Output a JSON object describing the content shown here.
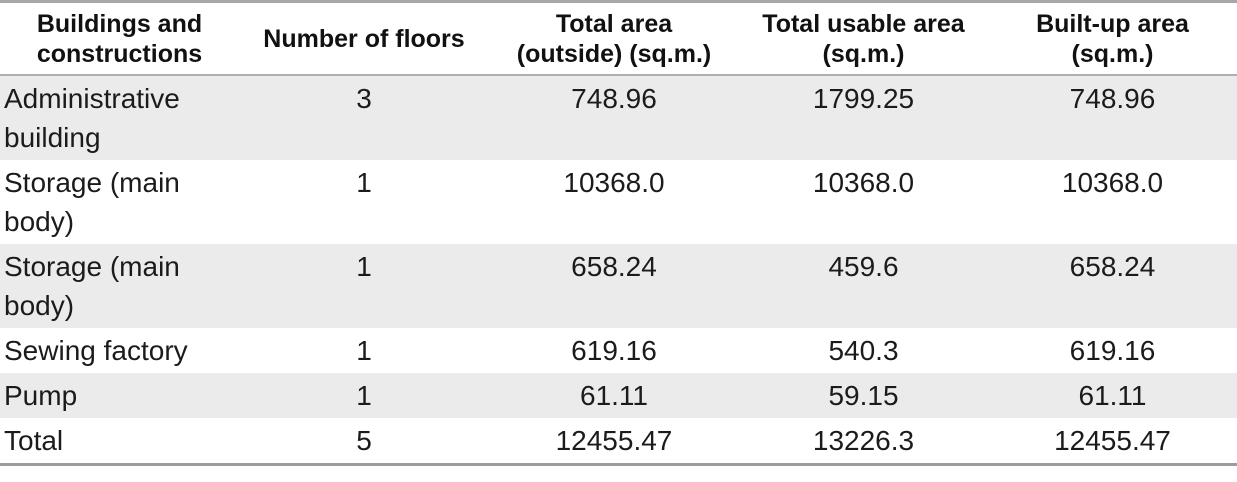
{
  "table": {
    "columns": [
      {
        "label": "Buildings and constructions",
        "lines": [
          "Buildings and",
          "constructions"
        ]
      },
      {
        "label": "Number of floors",
        "lines": [
          "Number of floors",
          ""
        ]
      },
      {
        "label": "Total area (outside) (sq.m.)",
        "lines": [
          "Total area",
          "(outside) (sq.m.)"
        ]
      },
      {
        "label": "Total usable area (sq.m.)",
        "lines": [
          "Total usable area",
          "(sq.m.)"
        ]
      },
      {
        "label": "Built-up area (sq.m.)",
        "lines": [
          "Built-up area",
          "(sq.m.)"
        ]
      }
    ],
    "rows": [
      {
        "building": "Administrative building",
        "floors": "3",
        "total_area_outside": "748.96",
        "total_usable_area": "1799.25",
        "built_up_area": "748.96"
      },
      {
        "building": "Storage (main body)",
        "floors": "1",
        "total_area_outside": "10368.0",
        "total_usable_area": "10368.0",
        "built_up_area": "10368.0"
      },
      {
        "building": "Storage (main body)",
        "floors": "1",
        "total_area_outside": "658.24",
        "total_usable_area": "459.6",
        "built_up_area": "658.24"
      },
      {
        "building": "Sewing factory",
        "floors": "1",
        "total_area_outside": "619.16",
        "total_usable_area": "540.3",
        "built_up_area": "619.16"
      },
      {
        "building": "Pump",
        "floors": "1",
        "total_area_outside": "61.11",
        "total_usable_area": "59.15",
        "built_up_area": "61.11"
      },
      {
        "building": "Total",
        "floors": "5",
        "total_area_outside": "12455.47",
        "total_usable_area": "13226.3",
        "built_up_area": "12455.47"
      }
    ]
  },
  "colors": {
    "stripe": "#ebebeb",
    "row_alt": "#ffffff",
    "border_top": "#a7a7a7",
    "header_separator": "#aeaeae",
    "border_bottom": "#9c9c9c",
    "header_text": "#111111",
    "body_text": "#1b1b1b"
  }
}
